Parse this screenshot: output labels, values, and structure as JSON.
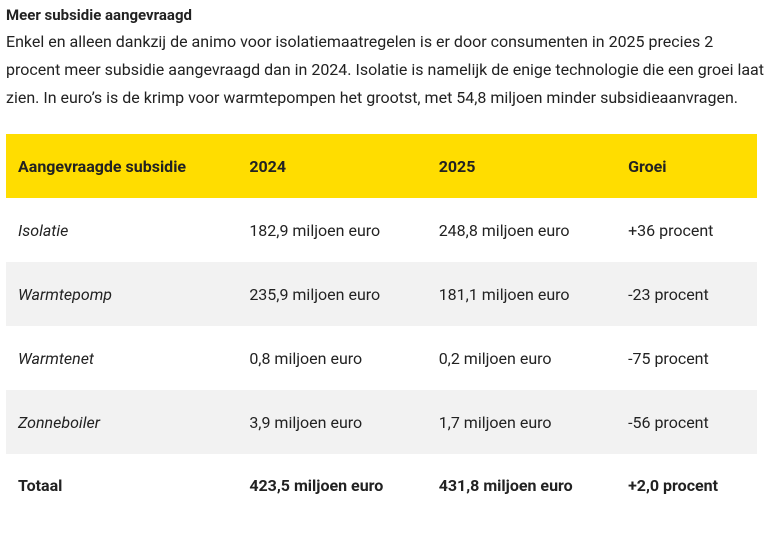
{
  "header": {
    "title": "Meer subsidie aangevraagd",
    "text": "Enkel en alleen dankzij de animo voor isolatiemaatregelen is er door consumenten in 2025 precies 2 procent meer subsidie aangevraagd dan in 2024. Isolatie is namelijk de enige technologie die een groei laat zien. In euro’s is de krimp voor warmtepompen het grootst, met 54,8 miljoen minder subsidieaanvragen."
  },
  "table": {
    "columns": [
      "Aangevraagde subsidie",
      "2024",
      "2025",
      "Groei"
    ],
    "rows": [
      [
        "Isolatie",
        "182,9 miljoen euro",
        "248,8 miljoen euro",
        "+36 procent"
      ],
      [
        "Warmtepomp",
        "235,9 miljoen euro",
        "181,1 miljoen euro",
        "-23 procent"
      ],
      [
        "Warmtenet",
        "0,8 miljoen euro",
        "0,2 miljoen euro",
        "-75 procent"
      ],
      [
        "Zonneboiler",
        "3,9 miljoen euro",
        "1,7 miljoen euro",
        "-56 procent"
      ],
      [
        "Totaal",
        "423,5 miljoen euro",
        "431,8 miljoen euro",
        "+2,0 procent"
      ]
    ]
  }
}
